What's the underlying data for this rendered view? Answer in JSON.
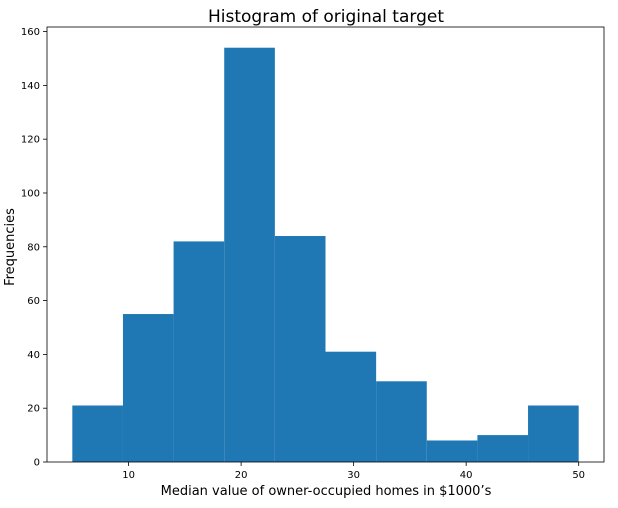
{
  "chart_data": {
    "type": "bar",
    "title": "Histogram of original target",
    "xlabel": "Median value of owner-occupied homes in $1000’s",
    "ylabel": "Frequencies",
    "bin_edges": [
      5,
      9.5,
      14,
      18.5,
      23,
      27.5,
      32,
      36.5,
      41,
      45.5,
      50
    ],
    "values": [
      21,
      55,
      82,
      154,
      84,
      41,
      30,
      8,
      10,
      21
    ],
    "xlim": [
      2.75,
      52.25
    ],
    "ylim": [
      0,
      161.7
    ],
    "xticks": [
      10,
      20,
      30,
      40,
      50
    ],
    "yticks": [
      0,
      20,
      40,
      60,
      80,
      100,
      120,
      140,
      160
    ],
    "bar_color": "#1f77b4",
    "grid": false,
    "legend": "none"
  }
}
